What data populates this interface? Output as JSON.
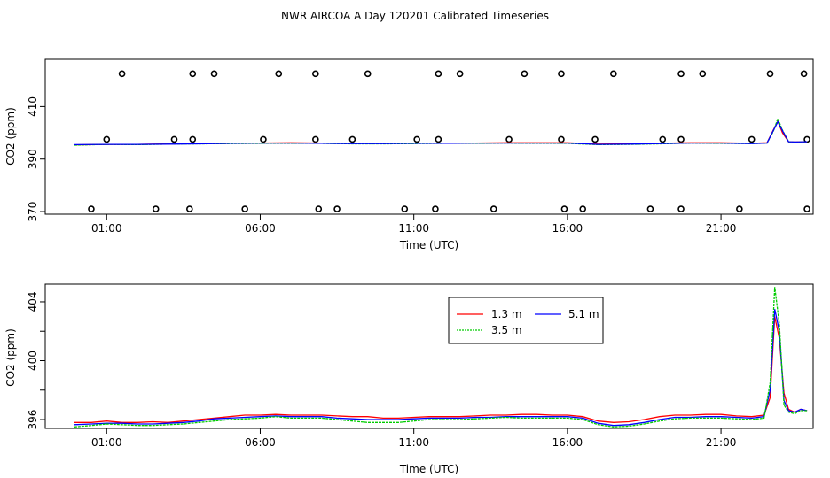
{
  "title": "NWR AIRCOA A  Day 120201  Calibrated Timeseries",
  "colors": {
    "1.3 m": "#ff0000",
    "3.5 m": "#00cc00",
    "5.1 m": "#0000ff",
    "points": "#000000"
  },
  "chart_data": [
    {
      "type": "line",
      "id": "top",
      "xlabel": "Time (UTC)",
      "ylabel": "CO2 (ppm)",
      "xlim": [
        -1.0,
        24.0
      ],
      "ylim": [
        369.0,
        428.0
      ],
      "xticks": [
        1,
        6,
        11,
        16,
        21
      ],
      "xtick_labels": [
        "01:00",
        "06:00",
        "11:00",
        "16:00",
        "21:00"
      ],
      "yticks": [
        370,
        390,
        410
      ],
      "yticks_labels": [
        "370",
        "390",
        "410"
      ],
      "grid": false,
      "series": [
        {
          "color": "#ff0000",
          "x": [
            -0.05,
            1,
            2,
            3,
            4,
            5,
            6,
            7,
            8,
            9,
            10,
            11,
            12,
            13,
            14,
            15,
            16,
            17,
            18,
            19,
            20,
            21,
            22,
            22.5,
            22.7,
            22.85,
            23.0,
            23.2,
            23.4,
            23.8
          ],
          "y": [
            395.4,
            395.6,
            395.6,
            395.8,
            395.9,
            396,
            396.1,
            396.2,
            396.1,
            396.1,
            396.0,
            396.1,
            396.1,
            396.1,
            396.2,
            396.2,
            396.2,
            395.7,
            395.8,
            396.0,
            396.2,
            396.2,
            396.0,
            396.2,
            401,
            404.3,
            400,
            396.6,
            396.5,
            396.6
          ]
        },
        {
          "color": "#00cc00",
          "x": [
            -0.05,
            1,
            2,
            3,
            4,
            5,
            6,
            7,
            8,
            9,
            10,
            11,
            12,
            13,
            14,
            15,
            16,
            17,
            18,
            19,
            20,
            21,
            22,
            22.5,
            22.7,
            22.85,
            23.0,
            23.2,
            23.4,
            23.8
          ],
          "y": [
            395.3,
            395.6,
            395.5,
            395.7,
            395.8,
            395.9,
            396.0,
            396.0,
            396.0,
            395.8,
            395.8,
            395.9,
            396.0,
            396.0,
            396.1,
            396.0,
            396.0,
            395.5,
            395.6,
            395.8,
            396.1,
            396.0,
            395.9,
            396.1,
            400.5,
            405.4,
            401,
            396.6,
            396.4,
            396.6
          ]
        },
        {
          "color": "#0000ff",
          "x": [
            -0.05,
            1,
            2,
            3,
            4,
            5,
            6,
            7,
            8,
            9,
            10,
            11,
            12,
            13,
            14,
            15,
            16,
            17,
            18,
            19,
            20,
            21,
            22,
            22.5,
            22.7,
            22.85,
            23.0,
            23.2,
            23.4,
            23.8
          ],
          "y": [
            395.5,
            395.6,
            395.6,
            395.7,
            395.8,
            396.0,
            396.1,
            396.1,
            396.0,
            395.9,
            395.9,
            396.0,
            396.0,
            396.1,
            396.1,
            396.1,
            396.1,
            395.6,
            395.7,
            395.9,
            396.1,
            396.1,
            395.9,
            396.1,
            400.8,
            404.2,
            400.8,
            396.6,
            396.5,
            396.6
          ]
        }
      ],
      "points": [
        {
          "x": 1.5,
          "y": 422.5
        },
        {
          "x": 3.8,
          "y": 422.5
        },
        {
          "x": 4.5,
          "y": 422.5
        },
        {
          "x": 6.6,
          "y": 422.5
        },
        {
          "x": 7.8,
          "y": 422.5
        },
        {
          "x": 9.5,
          "y": 422.5
        },
        {
          "x": 11.8,
          "y": 422.5
        },
        {
          "x": 12.5,
          "y": 422.5
        },
        {
          "x": 14.6,
          "y": 422.5
        },
        {
          "x": 15.8,
          "y": 422.5
        },
        {
          "x": 17.5,
          "y": 422.5
        },
        {
          "x": 19.7,
          "y": 422.5
        },
        {
          "x": 20.4,
          "y": 422.5
        },
        {
          "x": 22.6,
          "y": 422.5
        },
        {
          "x": 23.7,
          "y": 422.5
        },
        {
          "x": 1.0,
          "y": 397.5
        },
        {
          "x": 3.2,
          "y": 397.5
        },
        {
          "x": 3.8,
          "y": 397.5
        },
        {
          "x": 6.1,
          "y": 397.5
        },
        {
          "x": 7.8,
          "y": 397.5
        },
        {
          "x": 9.0,
          "y": 397.5
        },
        {
          "x": 11.1,
          "y": 397.5
        },
        {
          "x": 11.8,
          "y": 397.5
        },
        {
          "x": 14.1,
          "y": 397.5
        },
        {
          "x": 15.8,
          "y": 397.5
        },
        {
          "x": 16.9,
          "y": 397.5
        },
        {
          "x": 19.1,
          "y": 397.5
        },
        {
          "x": 19.7,
          "y": 397.5
        },
        {
          "x": 22.0,
          "y": 397.5
        },
        {
          "x": 23.8,
          "y": 397.5
        },
        {
          "x": 0.5,
          "y": 371
        },
        {
          "x": 2.6,
          "y": 371
        },
        {
          "x": 3.7,
          "y": 371
        },
        {
          "x": 5.5,
          "y": 371
        },
        {
          "x": 7.9,
          "y": 371
        },
        {
          "x": 8.5,
          "y": 371
        },
        {
          "x": 10.7,
          "y": 371
        },
        {
          "x": 11.7,
          "y": 371
        },
        {
          "x": 13.6,
          "y": 371
        },
        {
          "x": 15.9,
          "y": 371
        },
        {
          "x": 16.5,
          "y": 371
        },
        {
          "x": 18.7,
          "y": 371
        },
        {
          "x": 19.7,
          "y": 371
        },
        {
          "x": 21.6,
          "y": 371
        },
        {
          "x": 23.8,
          "y": 371
        }
      ]
    },
    {
      "type": "line",
      "id": "bottom",
      "xlabel": "Time (UTC)",
      "ylabel": "CO2 (ppm)",
      "xlim": [
        -1.0,
        24.0
      ],
      "ylim": [
        395.4,
        405.2
      ],
      "xticks": [
        1,
        6,
        11,
        16,
        21
      ],
      "xtick_labels": [
        "01:00",
        "06:00",
        "11:00",
        "16:00",
        "21:00"
      ],
      "yticks": [
        396,
        398,
        400,
        402,
        404
      ],
      "yticks_labels": [
        "396",
        "",
        "400",
        "",
        "404"
      ],
      "grid": false,
      "legend": {
        "placement": "top-center",
        "entries": [
          "1.3 m",
          "5.1 m",
          "3.5 m"
        ]
      },
      "series": [
        {
          "name": "1.3 m",
          "color": "#ff0000",
          "x": [
            -0.05,
            0.5,
            1,
            1.5,
            2,
            2.5,
            3,
            3.5,
            4,
            4.5,
            5,
            5.5,
            6,
            6.5,
            7,
            7.5,
            8,
            8.5,
            9,
            9.5,
            10,
            10.5,
            11,
            11.5,
            12,
            12.5,
            13,
            13.5,
            14,
            14.5,
            15,
            15.5,
            16,
            16.5,
            17,
            17.5,
            18,
            18.5,
            19,
            19.5,
            20,
            20.5,
            21,
            21.5,
            22,
            22.4,
            22.6,
            22.75,
            22.9,
            23.05,
            23.2,
            23.4,
            23.6,
            23.8
          ],
          "y": [
            395.8,
            395.8,
            395.9,
            395.8,
            395.8,
            395.85,
            395.8,
            395.9,
            396.0,
            396.1,
            396.2,
            396.3,
            396.3,
            396.35,
            396.3,
            396.3,
            396.3,
            396.25,
            396.2,
            396.2,
            396.1,
            396.1,
            396.15,
            396.2,
            396.2,
            396.2,
            396.25,
            396.3,
            396.3,
            396.35,
            396.35,
            396.3,
            396.3,
            396.2,
            395.9,
            395.8,
            395.85,
            396.0,
            396.2,
            396.3,
            396.3,
            396.35,
            396.35,
            396.25,
            396.2,
            396.3,
            397.5,
            403.0,
            401.5,
            397.8,
            396.7,
            396.5,
            396.7,
            396.6
          ]
        },
        {
          "name": "5.1 m",
          "color": "#0000ff",
          "x": [
            -0.05,
            0.5,
            1,
            1.5,
            2,
            2.5,
            3,
            3.5,
            4,
            4.5,
            5,
            5.5,
            6,
            6.5,
            7,
            7.5,
            8,
            8.5,
            9,
            9.5,
            10,
            10.5,
            11,
            11.5,
            12,
            12.5,
            13,
            13.5,
            14,
            14.5,
            15,
            15.5,
            16,
            16.5,
            17,
            17.5,
            18,
            18.5,
            19,
            19.5,
            20,
            20.5,
            21,
            21.5,
            22,
            22.4,
            22.6,
            22.75,
            22.9,
            23.05,
            23.2,
            23.4,
            23.6,
            23.8
          ],
          "y": [
            395.65,
            395.7,
            395.75,
            395.75,
            395.7,
            395.7,
            395.75,
            395.8,
            395.9,
            396.05,
            396.1,
            396.15,
            396.2,
            396.25,
            396.2,
            396.2,
            396.2,
            396.1,
            396.05,
            396.0,
            396.0,
            396.0,
            396.05,
            396.1,
            396.1,
            396.1,
            396.15,
            396.15,
            396.2,
            396.2,
            396.2,
            396.2,
            396.2,
            396.1,
            395.75,
            395.6,
            395.65,
            395.8,
            396.0,
            396.15,
            396.15,
            396.2,
            396.2,
            396.15,
            396.1,
            396.2,
            398.0,
            403.5,
            402.0,
            397.3,
            396.6,
            396.5,
            396.7,
            396.6
          ]
        },
        {
          "name": "3.5 m",
          "color": "#00cc00",
          "x": [
            -0.05,
            0.5,
            1,
            1.5,
            2,
            2.5,
            3,
            3.5,
            4,
            4.5,
            5,
            5.5,
            6,
            6.5,
            7,
            7.5,
            8,
            8.5,
            9,
            9.5,
            10,
            10.5,
            11,
            11.5,
            12,
            12.5,
            13,
            13.5,
            14,
            14.5,
            15,
            15.5,
            16,
            16.5,
            17,
            17.5,
            18,
            18.5,
            19,
            19.5,
            20,
            20.5,
            21,
            21.5,
            22,
            22.4,
            22.6,
            22.75,
            22.9,
            23.05,
            23.2,
            23.4,
            23.6,
            23.8
          ],
          "y": [
            395.5,
            395.6,
            395.7,
            395.65,
            395.6,
            395.6,
            395.65,
            395.7,
            395.8,
            395.9,
            396.0,
            396.05,
            396.1,
            396.2,
            396.1,
            396.1,
            396.1,
            396.0,
            395.9,
            395.8,
            395.8,
            395.8,
            395.9,
            396.0,
            396.0,
            396.0,
            396.05,
            396.1,
            396.15,
            396.1,
            396.1,
            396.1,
            396.1,
            396.0,
            395.65,
            395.5,
            395.55,
            395.7,
            395.9,
            396.05,
            396.1,
            396.1,
            396.1,
            396.05,
            396.0,
            396.1,
            398.5,
            405.0,
            402.5,
            397.0,
            396.5,
            396.4,
            396.6,
            396.6
          ]
        }
      ]
    }
  ]
}
